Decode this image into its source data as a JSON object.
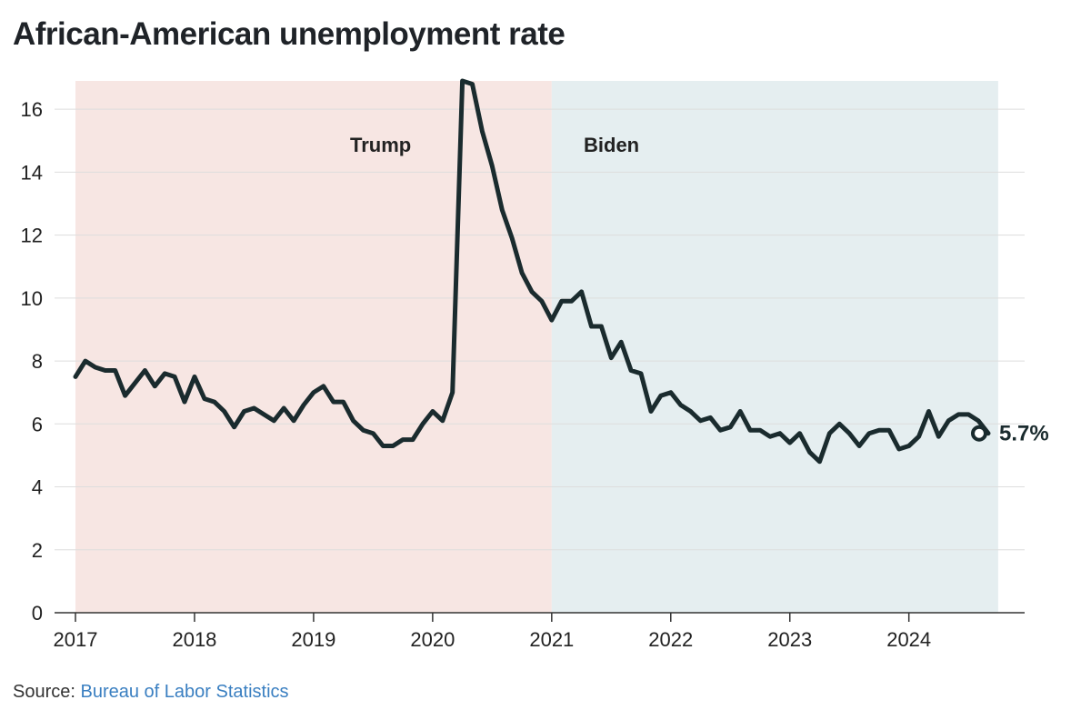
{
  "title": "African-American unemployment rate",
  "source": {
    "prefix": "Source:",
    "link_text": "Bureau of Labor Statistics"
  },
  "colors": {
    "line": "#1a2b2e",
    "trump_band": "#f7e6e3",
    "biden_band": "#e5eef0",
    "grid": "#dddddd",
    "link": "#3a7fc1"
  },
  "chart_data": {
    "type": "line",
    "title": "African-American unemployment rate",
    "xlabel": "",
    "ylabel": "",
    "xlim": [
      2017,
      2024.85
    ],
    "ylim": [
      0,
      16.9
    ],
    "yticks": [
      0,
      2,
      4,
      6,
      8,
      10,
      12,
      14,
      16
    ],
    "xticks": [
      2017,
      2018,
      2019,
      2020,
      2021,
      2022,
      2023,
      2024
    ],
    "grid": true,
    "periods": [
      {
        "label": "Trump",
        "start": 2017,
        "end": 2021
      },
      {
        "label": "Biden",
        "start": 2021,
        "end": 2024.75
      }
    ],
    "end_label": "5.7%",
    "series": [
      {
        "x_start": 2017,
        "step": "monthly",
        "values": [
          7.5,
          8.0,
          7.8,
          7.7,
          7.7,
          6.9,
          7.3,
          7.7,
          7.2,
          7.6,
          7.5,
          6.7,
          7.5,
          6.8,
          6.7,
          6.4,
          5.9,
          6.4,
          6.5,
          6.3,
          6.1,
          6.5,
          6.1,
          6.6,
          7.0,
          7.2,
          6.7,
          6.7,
          6.1,
          5.8,
          5.7,
          5.3,
          5.3,
          5.5,
          5.5,
          6.0,
          6.4,
          6.1,
          7.0,
          16.9,
          16.8,
          15.3,
          14.2,
          12.8,
          11.9,
          10.8,
          10.2,
          9.9,
          9.3,
          9.9,
          9.9,
          10.2,
          9.1,
          9.1,
          8.1,
          8.6,
          7.7,
          7.6,
          6.4,
          6.9,
          7.0,
          6.6,
          6.4,
          6.1,
          6.2,
          5.8,
          5.9,
          6.4,
          5.8,
          5.8,
          5.6,
          5.7,
          5.4,
          5.7,
          5.1,
          4.8,
          5.7,
          6.0,
          5.7,
          5.3,
          5.7,
          5.8,
          5.8,
          5.2,
          5.3,
          5.6,
          6.4,
          5.6,
          6.1,
          6.3,
          6.3,
          6.1,
          5.7
        ]
      }
    ]
  }
}
